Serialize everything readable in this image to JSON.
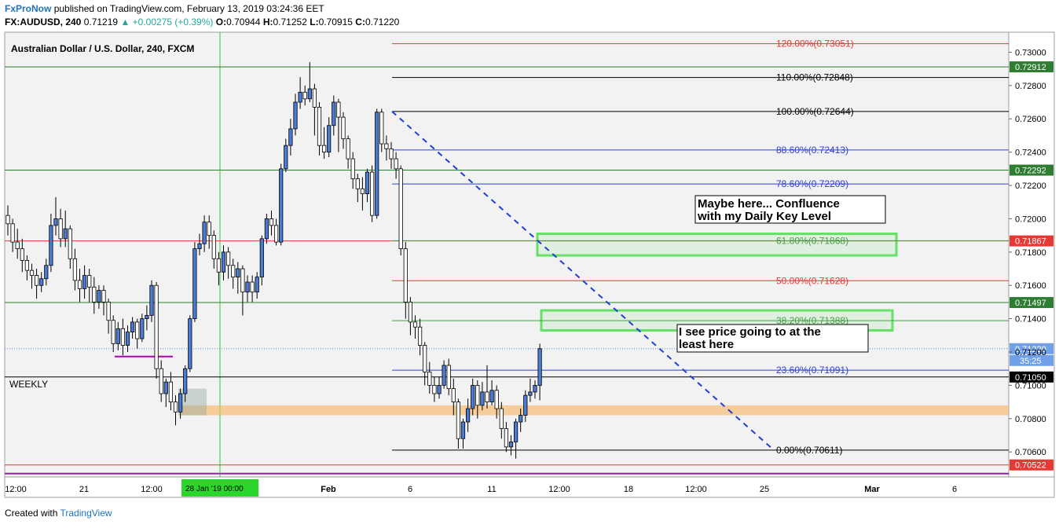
{
  "header": {
    "brand": "FxProNow",
    "published": "published on TradingView.com, February 13, 2019 03:24:36 EET",
    "symbol": "FX:AUDUSD, 240",
    "last": "0.71219",
    "change": "▲ +0.00275 (+0.39%)",
    "o_label": "O:",
    "o": "0.70944",
    "h_label": "H:",
    "h": "0.71252",
    "l_label": "L:",
    "l": "0.70915",
    "c_label": "C:",
    "c": "0.71220"
  },
  "footer": {
    "created_with": "Created with",
    "brand": "TradingView"
  },
  "chart_data": {
    "type": "candlestick",
    "title": "Australian Dollar / U.S. Dollar, 240, FXCM",
    "ylim": [
      0.7045,
      0.7312
    ],
    "y_ticks": [
      "0.73000",
      "0.72800",
      "0.72600",
      "0.72400",
      "0.72200",
      "0.72000",
      "0.71800",
      "0.71600",
      "0.71400",
      "0.71200",
      "0.71000",
      "0.70800",
      "0.70600"
    ],
    "x_ticks": [
      "12:00",
      "21",
      "12:00",
      "28 Jan '19",
      "Feb",
      "6",
      "11",
      "12:00",
      "18",
      "12:00",
      "25",
      "Mar",
      "6"
    ],
    "x_highlight": "28 Jan '19   00:00",
    "fib_levels": [
      {
        "label": "120.00%(0.73051)",
        "value": 0.73051,
        "color": "#e53935"
      },
      {
        "label": "110.00%(0.72848)",
        "value": 0.72848,
        "color": "#000000"
      },
      {
        "label": "100.00%(0.72644)",
        "value": 0.72644,
        "color": "#000000"
      },
      {
        "label": "88.60%(0.72413)",
        "value": 0.72413,
        "color": "#2f3fd6"
      },
      {
        "label": "78.60%(0.72209)",
        "value": 0.72209,
        "color": "#2f3fd6"
      },
      {
        "label": "61.80%(0.71868)",
        "value": 0.71868,
        "color": "#43a047"
      },
      {
        "label": "50.00%(0.71628)",
        "value": 0.71628,
        "color": "#e53935"
      },
      {
        "label": "38.20%(0.71388)",
        "value": 0.71388,
        "color": "#43a047"
      },
      {
        "label": "23.60%(0.71091)",
        "value": 0.71091,
        "color": "#2f3fd6"
      },
      {
        "label": "0.00%(0.70611)",
        "value": 0.70611,
        "color": "#000000"
      }
    ],
    "horizontal_lines": [
      {
        "value": 0.72912,
        "color": "#2e7d32",
        "label": "0.72912"
      },
      {
        "value": 0.72292,
        "color": "#2e7d32",
        "label": "0.72292"
      },
      {
        "value": 0.71867,
        "color": "#e53935",
        "label": "0.71867"
      },
      {
        "value": 0.71497,
        "color": "#2e7d32",
        "label": "0.71497"
      },
      {
        "value": 0.7105,
        "color": "#000000",
        "label": "0.71050",
        "text": "WEEKLY"
      },
      {
        "value": 0.70522,
        "color": "#e53935",
        "label": "0.70522"
      },
      {
        "value": 0.7047,
        "color": "#8e24aa"
      }
    ],
    "current_price": {
      "value": 0.7122,
      "label": "0.71220",
      "countdown": "35:25"
    },
    "zones": [
      {
        "name": "daily-key-level-zone",
        "from": 0.7178,
        "to": 0.7191,
        "color": "#66e066"
      },
      {
        "name": "target-zone",
        "from": 0.7133,
        "to": 0.7145,
        "color": "#66e066"
      },
      {
        "name": "support-zone",
        "from": 0.7082,
        "to": 0.7088,
        "color": "#f5b461"
      }
    ],
    "annotations": [
      {
        "text": "Maybe here... Confluence with my Daily Key Level"
      },
      {
        "text": "I see price going to at the least here"
      }
    ],
    "candles": [
      [
        0.7202,
        0.7197,
        0.7208,
        0.719
      ],
      [
        0.7197,
        0.7186,
        0.72,
        0.718
      ],
      [
        0.7186,
        0.7182,
        0.7194,
        0.7176
      ],
      [
        0.7182,
        0.7175,
        0.7188,
        0.7168
      ],
      [
        0.7175,
        0.7169,
        0.7178,
        0.7163
      ],
      [
        0.7169,
        0.7166,
        0.7173,
        0.7158
      ],
      [
        0.7166,
        0.716,
        0.717,
        0.7152
      ],
      [
        0.716,
        0.7164,
        0.7168,
        0.7156
      ],
      [
        0.7164,
        0.7172,
        0.7176,
        0.716
      ],
      [
        0.7172,
        0.7196,
        0.7203,
        0.7168
      ],
      [
        0.7196,
        0.72,
        0.7213,
        0.719
      ],
      [
        0.72,
        0.7188,
        0.7206,
        0.7183
      ],
      [
        0.7188,
        0.7194,
        0.7205,
        0.7183
      ],
      [
        0.7194,
        0.7176,
        0.7196,
        0.717
      ],
      [
        0.7176,
        0.7163,
        0.7182,
        0.7157
      ],
      [
        0.7163,
        0.7158,
        0.717,
        0.715
      ],
      [
        0.7158,
        0.7166,
        0.7172,
        0.7152
      ],
      [
        0.7166,
        0.7159,
        0.717,
        0.715
      ],
      [
        0.7159,
        0.715,
        0.7165,
        0.7143
      ],
      [
        0.715,
        0.7157,
        0.716,
        0.7146
      ],
      [
        0.7157,
        0.715,
        0.716,
        0.7142
      ],
      [
        0.715,
        0.7139,
        0.7152,
        0.7131
      ],
      [
        0.7139,
        0.7125,
        0.7142,
        0.712
      ],
      [
        0.7125,
        0.7134,
        0.7138,
        0.7121
      ],
      [
        0.7134,
        0.7124,
        0.714,
        0.7118
      ],
      [
        0.7124,
        0.7132,
        0.7136,
        0.712
      ],
      [
        0.7132,
        0.7138,
        0.7141,
        0.7128
      ],
      [
        0.7138,
        0.7128,
        0.714,
        0.7122
      ],
      [
        0.7128,
        0.714,
        0.7143,
        0.7126
      ],
      [
        0.714,
        0.7142,
        0.7148,
        0.7133
      ],
      [
        0.7142,
        0.716,
        0.7163,
        0.7138
      ],
      [
        0.716,
        0.711,
        0.7162,
        0.7104
      ],
      [
        0.711,
        0.7095,
        0.7115,
        0.709
      ],
      [
        0.7095,
        0.7102,
        0.7104,
        0.7087
      ],
      [
        0.7102,
        0.709,
        0.7108,
        0.7085
      ],
      [
        0.709,
        0.7084,
        0.7094,
        0.7076
      ],
      [
        0.7084,
        0.7095,
        0.7098,
        0.708
      ],
      [
        0.7095,
        0.711,
        0.7112,
        0.709
      ],
      [
        0.711,
        0.714,
        0.7142,
        0.7108
      ],
      [
        0.714,
        0.7182,
        0.7186,
        0.7138
      ],
      [
        0.7182,
        0.7185,
        0.7191,
        0.7178
      ],
      [
        0.7185,
        0.7198,
        0.7202,
        0.718
      ],
      [
        0.7198,
        0.719,
        0.7202,
        0.7182
      ],
      [
        0.719,
        0.7176,
        0.7193,
        0.717
      ],
      [
        0.7176,
        0.7168,
        0.718,
        0.716
      ],
      [
        0.7168,
        0.718,
        0.7184,
        0.7163
      ],
      [
        0.718,
        0.7172,
        0.7183,
        0.7164
      ],
      [
        0.7172,
        0.7165,
        0.7176,
        0.7158
      ],
      [
        0.7165,
        0.717,
        0.7174,
        0.7155
      ],
      [
        0.717,
        0.7156,
        0.7172,
        0.7142
      ],
      [
        0.7156,
        0.7162,
        0.7166,
        0.715
      ],
      [
        0.7162,
        0.7156,
        0.7166,
        0.715
      ],
      [
        0.7156,
        0.7165,
        0.7168,
        0.7152
      ],
      [
        0.7165,
        0.7188,
        0.719,
        0.716
      ],
      [
        0.7188,
        0.72,
        0.7203,
        0.7185
      ],
      [
        0.72,
        0.7196,
        0.7205,
        0.719
      ],
      [
        0.7196,
        0.7186,
        0.72,
        0.7184
      ],
      [
        0.7186,
        0.723,
        0.7233,
        0.7184
      ],
      [
        0.723,
        0.7244,
        0.7248,
        0.7228
      ],
      [
        0.7244,
        0.7254,
        0.726,
        0.7238
      ],
      [
        0.7254,
        0.727,
        0.7275,
        0.725
      ],
      [
        0.727,
        0.7276,
        0.7285,
        0.7266
      ],
      [
        0.7276,
        0.7272,
        0.728,
        0.7268
      ],
      [
        0.7272,
        0.7278,
        0.7294,
        0.727
      ],
      [
        0.7278,
        0.7267,
        0.7281,
        0.725
      ],
      [
        0.7267,
        0.7244,
        0.727,
        0.7238
      ],
      [
        0.7244,
        0.724,
        0.7255,
        0.7236
      ],
      [
        0.724,
        0.7256,
        0.7261,
        0.7237
      ],
      [
        0.7256,
        0.727,
        0.7274,
        0.725
      ],
      [
        0.727,
        0.7261,
        0.7272,
        0.724
      ],
      [
        0.7261,
        0.7248,
        0.7264,
        0.7242
      ],
      [
        0.7248,
        0.7236,
        0.725,
        0.723
      ],
      [
        0.7236,
        0.7224,
        0.724,
        0.7218
      ],
      [
        0.7224,
        0.7218,
        0.7227,
        0.721
      ],
      [
        0.7218,
        0.7215,
        0.7225,
        0.7205
      ],
      [
        0.7215,
        0.7228,
        0.723,
        0.721
      ],
      [
        0.7228,
        0.7202,
        0.7232,
        0.7198
      ],
      [
        0.7202,
        0.7264,
        0.7266,
        0.72
      ],
      [
        0.7264,
        0.7245,
        0.7266,
        0.724
      ],
      [
        0.7245,
        0.7242,
        0.725,
        0.7235
      ],
      [
        0.7242,
        0.7236,
        0.7246,
        0.723
      ],
      [
        0.7236,
        0.723,
        0.724,
        0.7224
      ],
      [
        0.723,
        0.7182,
        0.7232,
        0.7178
      ],
      [
        0.7182,
        0.715,
        0.7186,
        0.714
      ],
      [
        0.715,
        0.7138,
        0.7153,
        0.713
      ],
      [
        0.7138,
        0.7135,
        0.7142,
        0.7128
      ],
      [
        0.7135,
        0.7124,
        0.714,
        0.7118
      ],
      [
        0.7124,
        0.7108,
        0.7126,
        0.71
      ],
      [
        0.7108,
        0.71,
        0.7114,
        0.7095
      ],
      [
        0.71,
        0.7095,
        0.7105,
        0.709
      ],
      [
        0.7095,
        0.71,
        0.7105,
        0.7092
      ],
      [
        0.71,
        0.7112,
        0.7115,
        0.7098
      ],
      [
        0.7112,
        0.7098,
        0.7116,
        0.7094
      ],
      [
        0.7098,
        0.709,
        0.7104,
        0.7082
      ],
      [
        0.709,
        0.7068,
        0.7092,
        0.7062
      ],
      [
        0.7068,
        0.7078,
        0.708,
        0.7062
      ],
      [
        0.7078,
        0.7086,
        0.7092,
        0.7072
      ],
      [
        0.7086,
        0.71,
        0.7104,
        0.7082
      ],
      [
        0.71,
        0.7088,
        0.7103,
        0.708
      ],
      [
        0.7088,
        0.7096,
        0.7102,
        0.7085
      ],
      [
        0.7096,
        0.709,
        0.7112,
        0.7086
      ],
      [
        0.709,
        0.7097,
        0.7103,
        0.7088
      ],
      [
        0.7097,
        0.7086,
        0.71,
        0.708
      ],
      [
        0.7086,
        0.7074,
        0.709,
        0.7068
      ],
      [
        0.7074,
        0.7063,
        0.7078,
        0.706
      ],
      [
        0.7063,
        0.7066,
        0.707,
        0.7058
      ],
      [
        0.7066,
        0.7078,
        0.708,
        0.7056
      ],
      [
        0.7078,
        0.7082,
        0.7086,
        0.7072
      ],
      [
        0.7082,
        0.7094,
        0.7097,
        0.7078
      ],
      [
        0.7094,
        0.7096,
        0.7104,
        0.709
      ],
      [
        0.7096,
        0.71,
        0.7103,
        0.7092
      ],
      [
        0.71,
        0.7122,
        0.7125,
        0.7091
      ]
    ]
  }
}
